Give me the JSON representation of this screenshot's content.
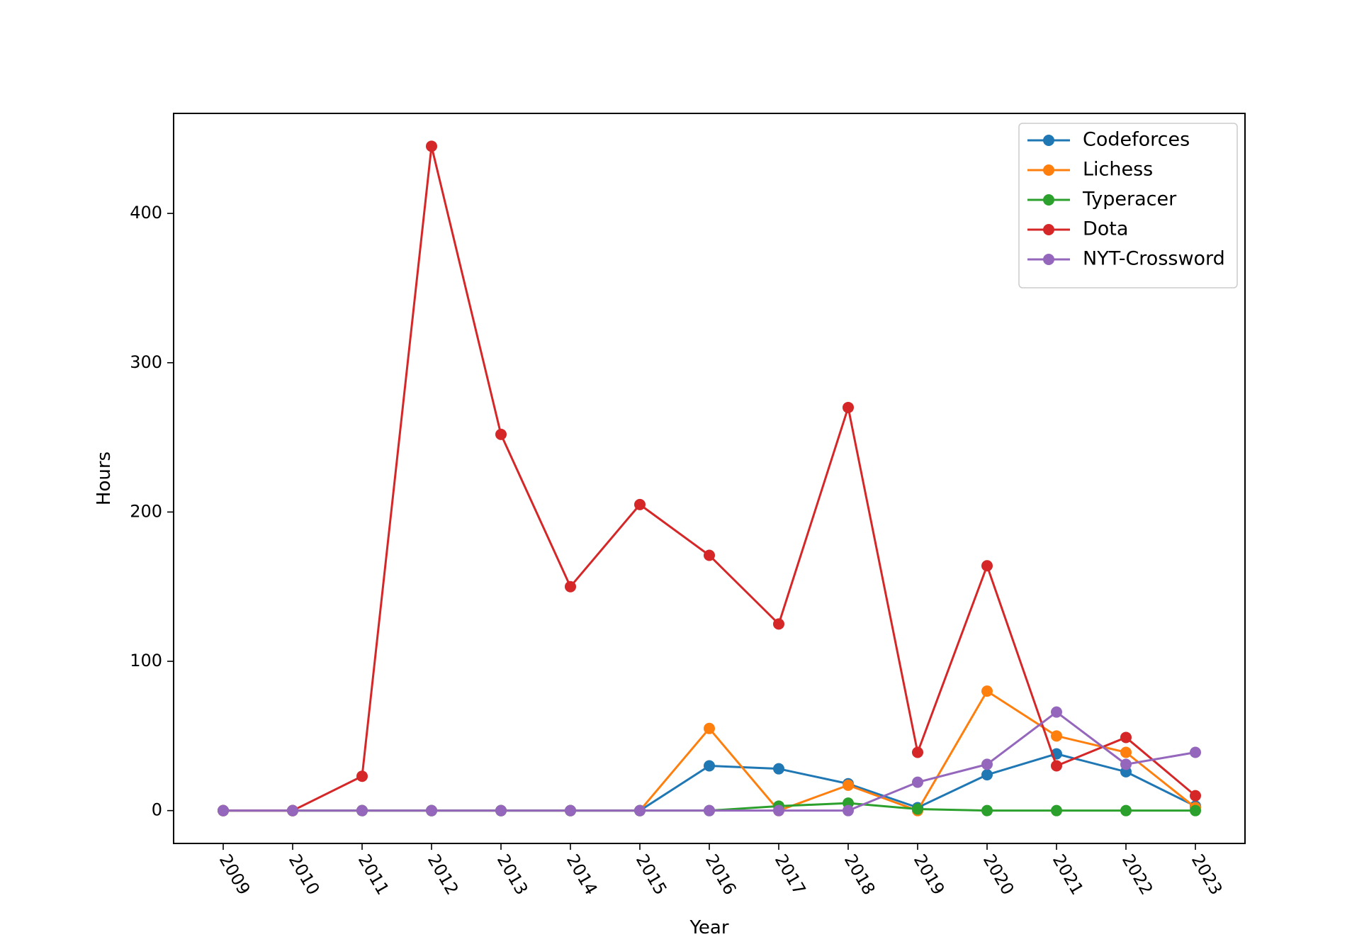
{
  "chart_data": {
    "type": "line",
    "title": "",
    "xlabel": "Year",
    "ylabel": "Hours",
    "x": [
      2009,
      2010,
      2011,
      2012,
      2013,
      2014,
      2015,
      2016,
      2017,
      2018,
      2019,
      2020,
      2021,
      2022,
      2023
    ],
    "x_tick_labels": [
      "2009",
      "2010",
      "2011",
      "2012",
      "2013",
      "2014",
      "2015",
      "2016",
      "2017",
      "2018",
      "2019",
      "2020",
      "2021",
      "2022",
      "2023"
    ],
    "x_tick_rotation_deg": -60,
    "ylim": [
      -22,
      467
    ],
    "y_ticks": [
      0,
      100,
      200,
      300,
      400
    ],
    "y_tick_labels": [
      "0",
      "100",
      "200",
      "300",
      "400"
    ],
    "grid": false,
    "legend_position": "top-right",
    "markers": true,
    "series": [
      {
        "name": "Codeforces",
        "color": "#1f77b4",
        "values": [
          0,
          0,
          0,
          0,
          0,
          0,
          0,
          30,
          28,
          18,
          2,
          24,
          38,
          26,
          3
        ]
      },
      {
        "name": "Lichess",
        "color": "#ff7f0e",
        "values": [
          0,
          0,
          0,
          0,
          0,
          0,
          0,
          55,
          0,
          17,
          0,
          80,
          50,
          39,
          2
        ]
      },
      {
        "name": "Typeracer",
        "color": "#2ca02c",
        "values": [
          0,
          0,
          0,
          0,
          0,
          0,
          0,
          0,
          3,
          5,
          1,
          0,
          0,
          0,
          0
        ]
      },
      {
        "name": "Dota",
        "color": "#d62728",
        "values": [
          0,
          0,
          23,
          445,
          252,
          150,
          205,
          171,
          125,
          270,
          39,
          164,
          30,
          49,
          10
        ]
      },
      {
        "name": "NYT-Crossword",
        "color": "#9467bd",
        "values": [
          0,
          0,
          0,
          0,
          0,
          0,
          0,
          0,
          0,
          0,
          19,
          31,
          66,
          31,
          39
        ]
      }
    ]
  }
}
